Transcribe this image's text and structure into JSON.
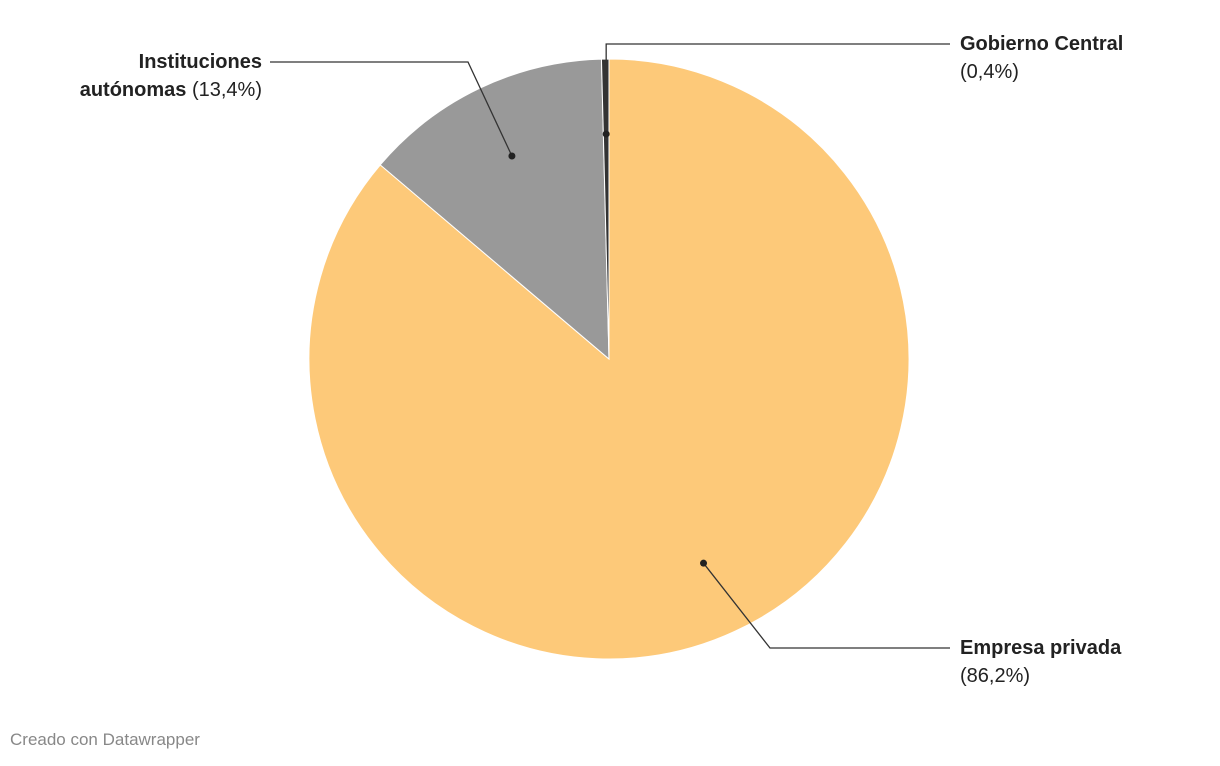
{
  "chart_data": {
    "type": "pie",
    "categories": [
      "Empresa privada",
      "Instituciones autónomas",
      "Gobierno Central"
    ],
    "values": [
      86.2,
      13.4,
      0.4
    ],
    "value_labels": [
      "(86,2%)",
      "(13,4%)",
      "(0,4%)"
    ],
    "colors": [
      "#fdc979",
      "#999999",
      "#333333"
    ],
    "credit": "Creado con Datawrapper"
  }
}
